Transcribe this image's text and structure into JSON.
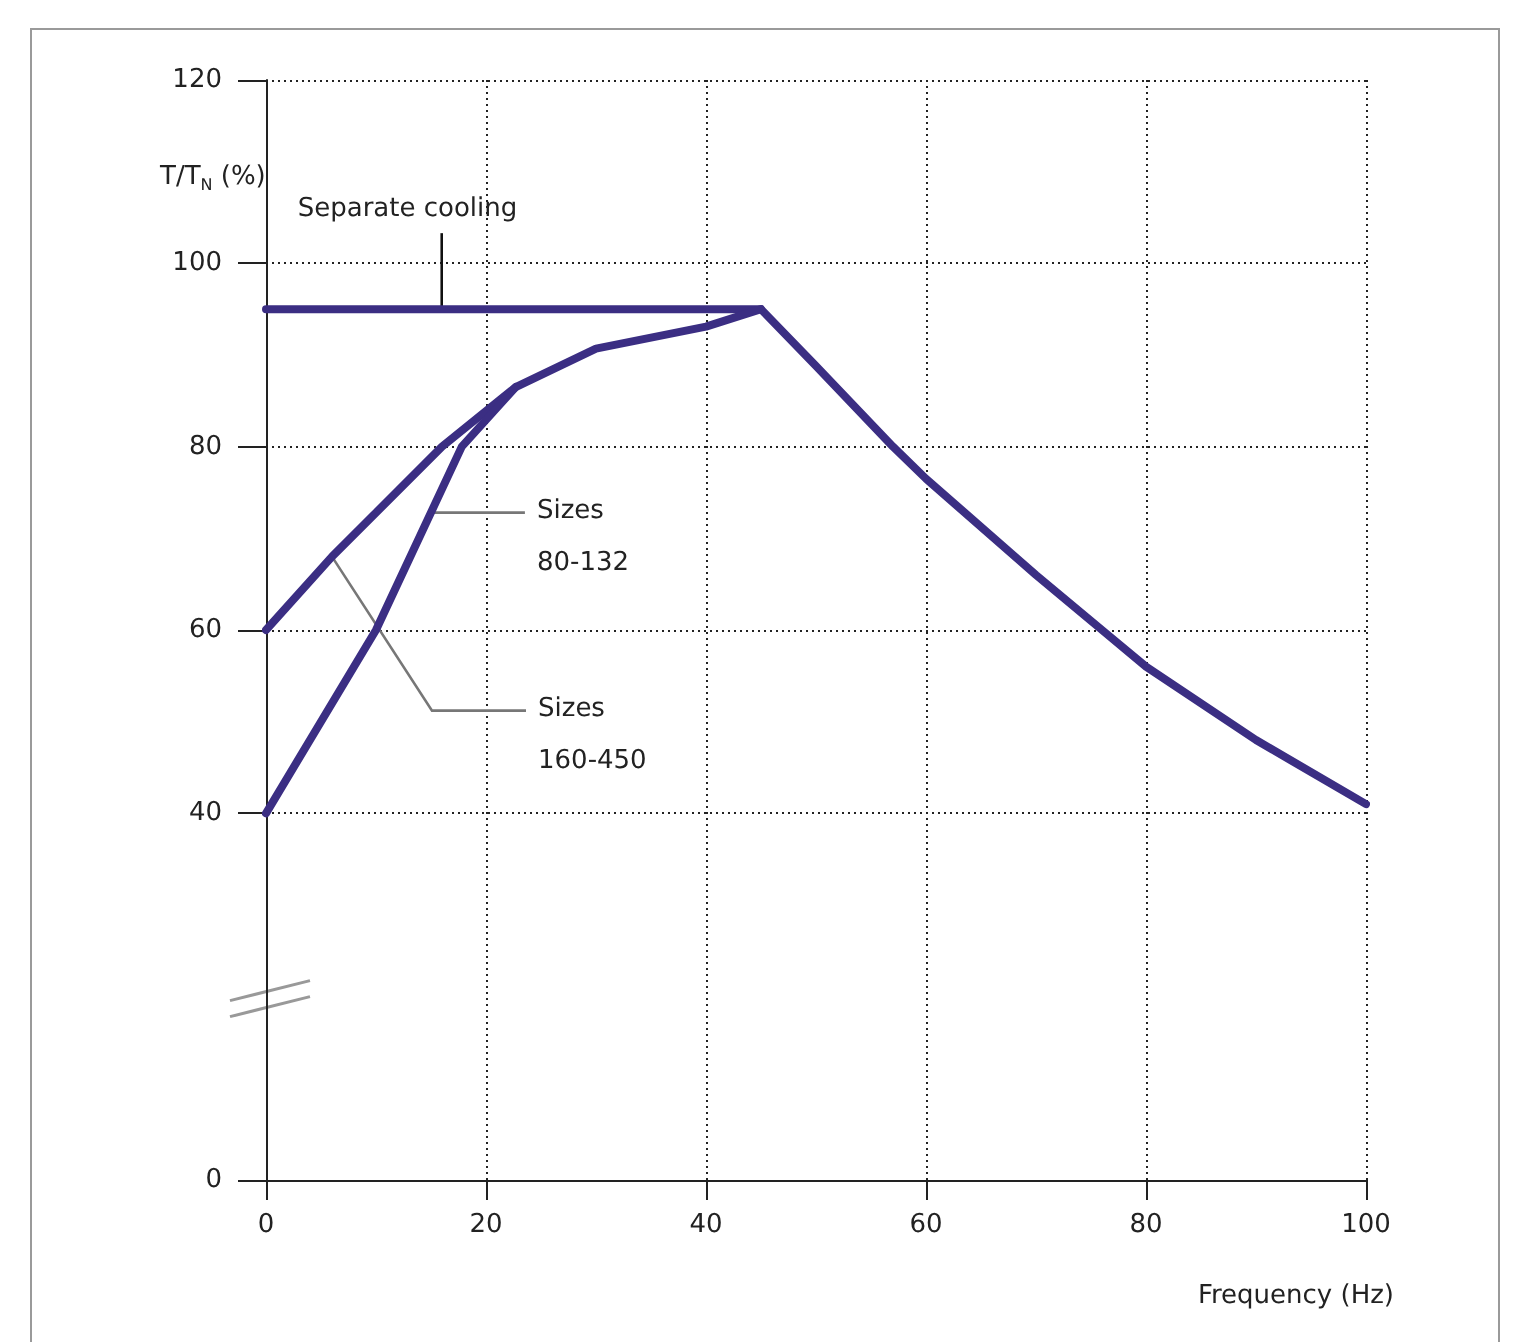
{
  "chart_data": {
    "type": "line",
    "xlabel": "Frequency (Hz)",
    "ylabel": "T/T$_{N}$ (%)",
    "xlim": [
      0,
      100
    ],
    "xticks": [
      0,
      20,
      40,
      60,
      80,
      100
    ],
    "ylim": [
      0,
      120
    ],
    "yticks": [
      0,
      40,
      60,
      80,
      100,
      120
    ],
    "grid": true,
    "legend": false,
    "marker": "none",
    "line_style": "solid",
    "series": [
      {
        "name": "Separate cooling",
        "color": "#3b2e83",
        "x": [
          0,
          45,
          50,
          57,
          60,
          70,
          76,
          80,
          90,
          100
        ],
        "values": [
          95,
          95,
          88.8,
          80,
          76.5,
          66,
          60,
          56,
          48,
          41
        ]
      },
      {
        "name": "Sizes 160-450",
        "color": "#3b2e83",
        "x": [
          0,
          6,
          16,
          22.7,
          30,
          40,
          45
        ],
        "values": [
          60,
          68,
          80,
          86.5,
          90.7,
          93.1,
          95
        ]
      },
      {
        "name": "Sizes 80-132",
        "color": "#3b2e83",
        "x": [
          0,
          10,
          17.8,
          22.7
        ],
        "values": [
          40,
          60,
          80,
          86.5
        ]
      }
    ]
  }
}
